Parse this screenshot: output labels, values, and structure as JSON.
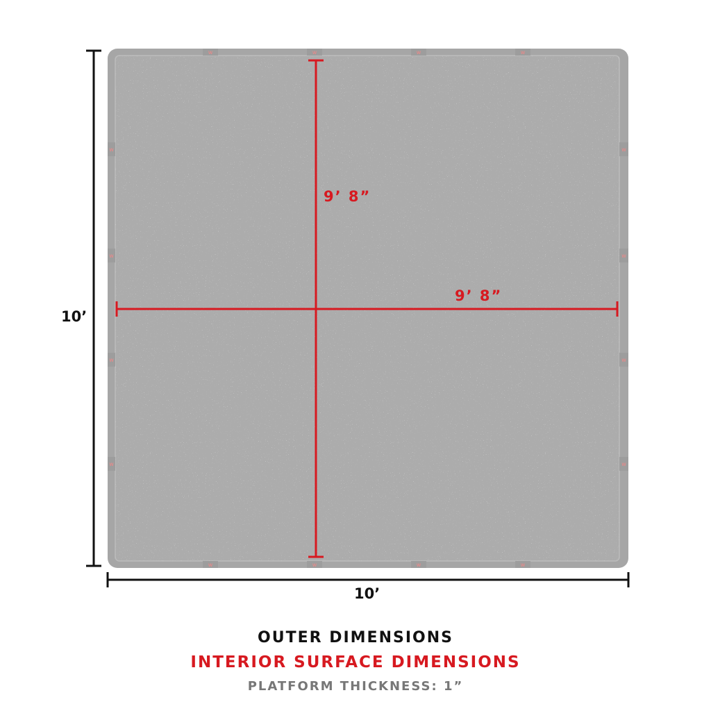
{
  "diagram": {
    "outer_height_label": "10’",
    "outer_width_label": "10’",
    "interior_height_label": "9’ 8”",
    "interior_width_label": "9’ 8”"
  },
  "legend": {
    "outer": "OUTER DIMENSIONS",
    "interior": "INTERIOR SURFACE DIMENSIONS",
    "thickness": "PLATFORM THICKNESS: 1”"
  },
  "colors": {
    "outer_dimension": "#111111",
    "interior_dimension": "#d71920",
    "thickness_text": "#777777",
    "platform": "#a9a9a9"
  }
}
